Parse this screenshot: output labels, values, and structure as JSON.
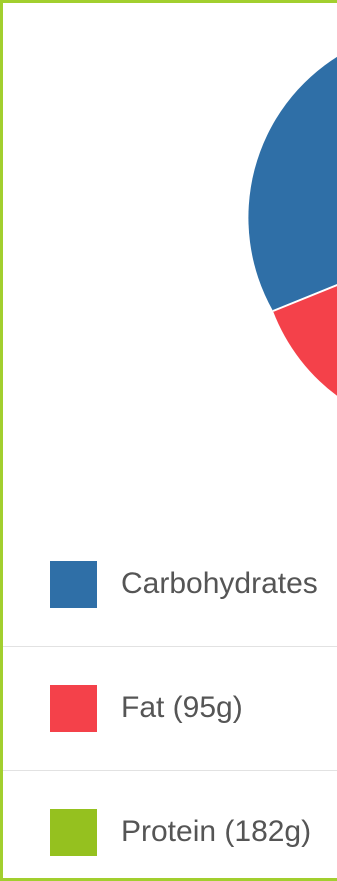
{
  "chart_data": {
    "type": "pie",
    "slices": [
      {
        "label": "Carbohydrates",
        "value": null,
        "color": "#2f6fa7"
      },
      {
        "label": "Fat (95g)",
        "value": 95,
        "color": "#f4414a"
      },
      {
        "label": "Protein (182g)",
        "value": 182,
        "color": "#95c11f"
      }
    ]
  },
  "legend": {
    "items": [
      {
        "label": "Carbohydrates",
        "color": "#2f6fa7",
        "icon": "square-swatch"
      },
      {
        "label": "Fat (95g)",
        "color": "#f4414a",
        "icon": "square-swatch"
      },
      {
        "label": "Protein (182g)",
        "color": "#95c11f",
        "icon": "square-swatch"
      }
    ]
  },
  "colors": {
    "frame": "#a2cf2e",
    "divider": "#e2e2e2",
    "text": "#555555"
  }
}
